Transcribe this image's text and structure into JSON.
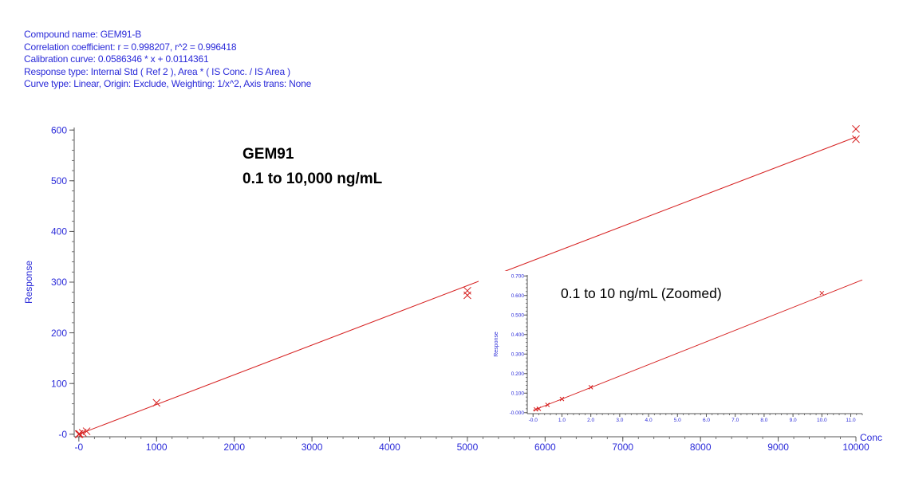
{
  "header": {
    "lines": [
      "Compound name: GEM91-B",
      "Correlation coefficient: r = 0.998207, r^2 = 0.996418",
      "Calibration curve: 0.0586346 * x + 0.0114361",
      "Response type: Internal Std ( Ref 2 ), Area * ( IS Conc. / IS Area )",
      "Curve type: Linear, Origin: Exclude, Weighting: 1/x^2, Axis trans: None"
    ]
  },
  "colors": {
    "text": "#2b2bd9",
    "curve": "#d62020",
    "axis": "#555555"
  },
  "chart_data": [
    {
      "type": "scatter",
      "title": "",
      "annotation_lines": [
        "GEM91",
        "0.1 to 10,000 ng/mL"
      ],
      "xlabel": "Conc",
      "ylabel": "Response",
      "xlim": [
        -60,
        10000
      ],
      "ylim": [
        -5,
        605
      ],
      "xticks": [
        0,
        1000,
        2000,
        3000,
        4000,
        5000,
        6000,
        7000,
        8000,
        9000,
        10000
      ],
      "xtick_labels": [
        "-0",
        "1000",
        "2000",
        "3000",
        "4000",
        "5000",
        "6000",
        "7000",
        "8000",
        "9000",
        "10000"
      ],
      "yticks": [
        0,
        100,
        200,
        300,
        400,
        500,
        600
      ],
      "ytick_labels": [
        "-0",
        "100",
        "200",
        "300",
        "400",
        "500",
        "600"
      ],
      "fit": {
        "slope": 0.0586346,
        "intercept": 0.0114361
      },
      "points": [
        {
          "x": 0.1,
          "y": 0.02
        },
        {
          "x": 0.5,
          "y": 0.04
        },
        {
          "x": 1,
          "y": 0.07
        },
        {
          "x": 2,
          "y": 0.13
        },
        {
          "x": 10,
          "y": 0.6
        },
        {
          "x": 50,
          "y": 2.9
        },
        {
          "x": 100,
          "y": 5.9
        },
        {
          "x": 1000,
          "y": 62
        },
        {
          "x": 5000,
          "y": 283
        },
        {
          "x": 5000,
          "y": 274
        },
        {
          "x": 10000,
          "y": 602
        },
        {
          "x": 10000,
          "y": 582
        }
      ],
      "grid": false,
      "legend": "none"
    },
    {
      "type": "scatter",
      "title": "",
      "annotation_lines": [
        "0.1 to 10 ng/mL (Zoomed)"
      ],
      "xlabel": "",
      "ylabel": "Response",
      "xlim": [
        -0.2,
        11.4
      ],
      "ylim": [
        -0.005,
        0.705
      ],
      "xticks": [
        0,
        1,
        2,
        3,
        4,
        5,
        6,
        7,
        8,
        9,
        10,
        11
      ],
      "xtick_labels": [
        "-0.0",
        "1.0",
        "2.0",
        "3.0",
        "4.0",
        "5.0",
        "6.0",
        "7.0",
        "8.0",
        "9.0",
        "10.0",
        "11.0"
      ],
      "yticks": [
        0,
        0.1,
        0.2,
        0.3,
        0.4,
        0.5,
        0.6,
        0.7
      ],
      "ytick_labels": [
        "-0.000",
        "0.100",
        "0.200",
        "0.300",
        "0.400",
        "0.500",
        "0.600",
        "0.700"
      ],
      "fit": {
        "slope": 0.0586346,
        "intercept": 0.0114361
      },
      "points": [
        {
          "x": 0.1,
          "y": 0.017
        },
        {
          "x": 0.2,
          "y": 0.02
        },
        {
          "x": 0.5,
          "y": 0.04
        },
        {
          "x": 1,
          "y": 0.07
        },
        {
          "x": 2,
          "y": 0.13
        },
        {
          "x": 10,
          "y": 0.612
        }
      ],
      "grid": false,
      "legend": "none"
    }
  ]
}
